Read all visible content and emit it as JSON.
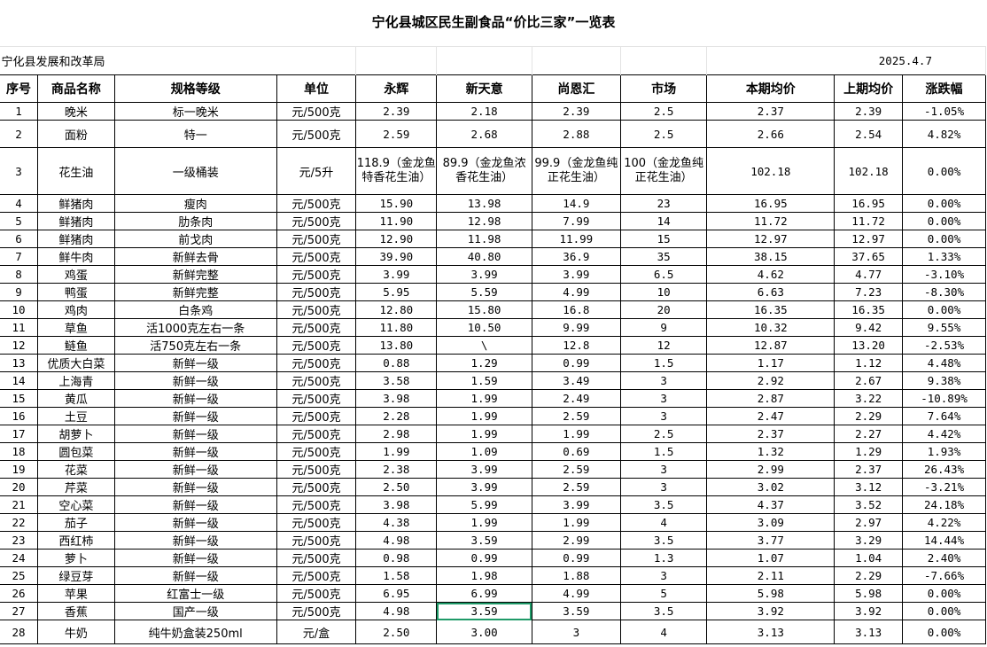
{
  "title": "宁化县城区民生副食品“价比三家”一览表",
  "org": "宁化县发展和改革局",
  "date": "2025.4.7",
  "headers": [
    "序号",
    "商品名称",
    "规格等级",
    "单位",
    "永辉",
    "新天意",
    "尚恩汇",
    "市场",
    "本期均价",
    "上期均价",
    "涨跌幅"
  ],
  "selected_cell": {
    "row": 27,
    "column": "新天意"
  },
  "selection_color": "#1f9a68",
  "rows": [
    [
      "1",
      "晚米",
      "标一晚米",
      "元/500克",
      "2.39",
      "2.18",
      "2.39",
      "2.5",
      "2.37",
      "2.39",
      "-1.05%"
    ],
    [
      "2",
      "面粉",
      "特一",
      "元/500克",
      "2.59",
      "2.68",
      "2.88",
      "2.5",
      "2.66",
      "2.54",
      "4.82%"
    ],
    [
      "3",
      "花生油",
      "一级桶装",
      "元/5升",
      "118.9（金龙鱼特香花生油）",
      "89.9（金龙鱼浓香花生油）",
      "99.9（金龙鱼纯正花生油）",
      "100（金龙鱼纯正花生油）",
      "102.18",
      "102.18",
      "0.00%"
    ],
    [
      "4",
      "鲜猪肉",
      "瘦肉",
      "元/500克",
      "15.90",
      "13.98",
      "14.9",
      "23",
      "16.95",
      "16.95",
      "0.00%"
    ],
    [
      "5",
      "鲜猪肉",
      "肋条肉",
      "元/500克",
      "11.90",
      "12.98",
      "7.99",
      "14",
      "11.72",
      "11.72",
      "0.00%"
    ],
    [
      "6",
      "鲜猪肉",
      "前戈肉",
      "元/500克",
      "12.90",
      "11.98",
      "11.99",
      "15",
      "12.97",
      "12.97",
      "0.00%"
    ],
    [
      "7",
      "鲜牛肉",
      "新鲜去骨",
      "元/500克",
      "39.90",
      "40.80",
      "36.9",
      "35",
      "38.15",
      "37.65",
      "1.33%"
    ],
    [
      "8",
      "鸡蛋",
      "新鲜完整",
      "元/500克",
      "3.99",
      "3.99",
      "3.99",
      "6.5",
      "4.62",
      "4.77",
      "-3.10%"
    ],
    [
      "9",
      "鸭蛋",
      "新鲜完整",
      "元/500克",
      "5.95",
      "5.59",
      "4.99",
      "10",
      "6.63",
      "7.23",
      "-8.30%"
    ],
    [
      "10",
      "鸡肉",
      "白条鸡",
      "元/500克",
      "12.80",
      "15.80",
      "16.8",
      "20",
      "16.35",
      "16.35",
      "0.00%"
    ],
    [
      "11",
      "草鱼",
      "活1000克左右一条",
      "元/500克",
      "11.80",
      "10.50",
      "9.99",
      "9",
      "10.32",
      "9.42",
      "9.55%"
    ],
    [
      "12",
      "鲢鱼",
      "活750克左右一条",
      "元/500克",
      "13.80",
      "\\",
      "12.8",
      "12",
      "12.87",
      "13.20",
      "-2.53%"
    ],
    [
      "13",
      "优质大白菜",
      "新鲜一级",
      "元/500克",
      "0.88",
      "1.29",
      "0.99",
      "1.5",
      "1.17",
      "1.12",
      "4.48%"
    ],
    [
      "14",
      "上海青",
      "新鲜一级",
      "元/500克",
      "3.58",
      "1.59",
      "3.49",
      "3",
      "2.92",
      "2.67",
      "9.38%"
    ],
    [
      "15",
      "黄瓜",
      "新鲜一级",
      "元/500克",
      "3.98",
      "1.99",
      "2.49",
      "3",
      "2.87",
      "3.22",
      "-10.89%"
    ],
    [
      "16",
      "土豆",
      "新鲜一级",
      "元/500克",
      "2.28",
      "1.99",
      "2.59",
      "3",
      "2.47",
      "2.29",
      "7.64%"
    ],
    [
      "17",
      "胡萝卜",
      "新鲜一级",
      "元/500克",
      "2.98",
      "1.99",
      "1.99",
      "2.5",
      "2.37",
      "2.27",
      "4.42%"
    ],
    [
      "18",
      "圆包菜",
      "新鲜一级",
      "元/500克",
      "1.99",
      "1.09",
      "0.69",
      "1.5",
      "1.32",
      "1.29",
      "1.93%"
    ],
    [
      "19",
      "花菜",
      "新鲜一级",
      "元/500克",
      "2.38",
      "3.99",
      "2.59",
      "3",
      "2.99",
      "2.37",
      "26.43%"
    ],
    [
      "20",
      "芹菜",
      "新鲜一级",
      "元/500克",
      "2.50",
      "3.99",
      "2.59",
      "3",
      "3.02",
      "3.12",
      "-3.21%"
    ],
    [
      "21",
      "空心菜",
      "新鲜一级",
      "元/500克",
      "3.98",
      "5.99",
      "3.99",
      "3.5",
      "4.37",
      "3.52",
      "24.18%"
    ],
    [
      "22",
      "茄子",
      "新鲜一级",
      "元/500克",
      "4.38",
      "1.99",
      "1.99",
      "4",
      "3.09",
      "2.97",
      "4.22%"
    ],
    [
      "23",
      "西红柿",
      "新鲜一级",
      "元/500克",
      "4.98",
      "3.59",
      "2.99",
      "3.5",
      "3.77",
      "3.29",
      "14.44%"
    ],
    [
      "24",
      "萝卜",
      "新鲜一级",
      "元/500克",
      "0.98",
      "0.99",
      "0.99",
      "1.3",
      "1.07",
      "1.04",
      "2.40%"
    ],
    [
      "25",
      "绿豆芽",
      "新鲜一级",
      "元/500克",
      "1.58",
      "1.98",
      "1.88",
      "3",
      "2.11",
      "2.29",
      "-7.66%"
    ],
    [
      "26",
      "苹果",
      "红富士一级",
      "元/500克",
      "6.95",
      "6.99",
      "4.99",
      "5",
      "5.98",
      "5.98",
      "0.00%"
    ],
    [
      "27",
      "香蕉",
      "国产一级",
      "元/500克",
      "4.98",
      "3.59",
      "3.59",
      "3.5",
      "3.92",
      "3.92",
      "0.00%"
    ],
    [
      "28",
      "牛奶",
      "纯牛奶盒装250ml",
      "元/盒",
      "2.50",
      "3.00",
      "3",
      "4",
      "3.13",
      "3.13",
      "0.00%"
    ]
  ]
}
